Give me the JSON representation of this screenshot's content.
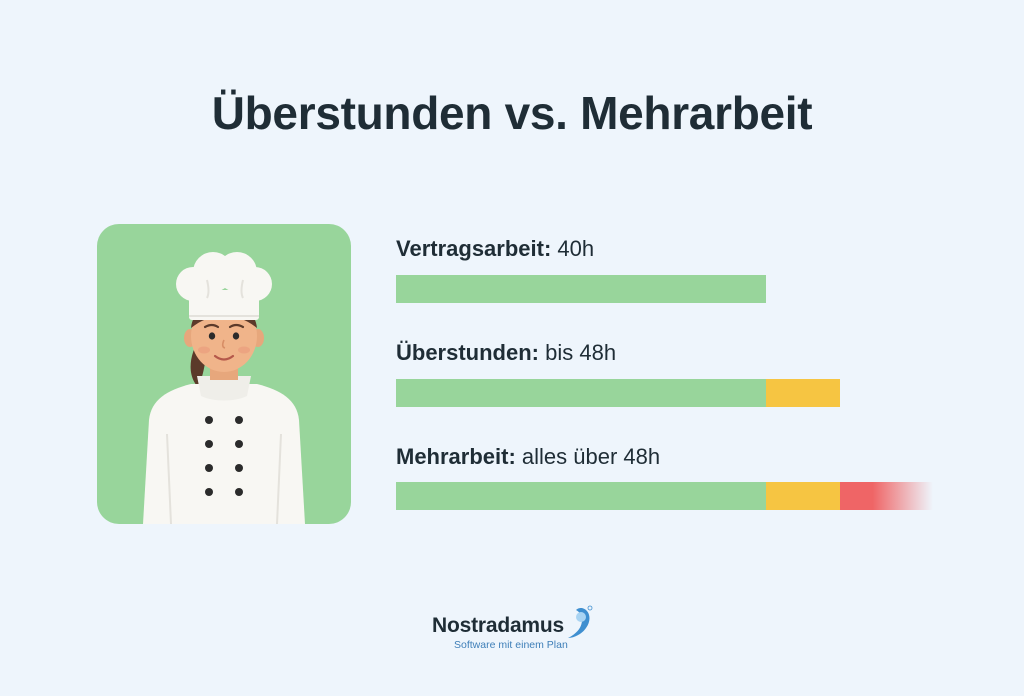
{
  "title": "Überstunden vs. Mehrarbeit",
  "rows": [
    {
      "label_bold": "Vertragsarbeit:",
      "label_rest": " 40h"
    },
    {
      "label_bold": "Überstunden:",
      "label_rest": " bis 48h"
    },
    {
      "label_bold": "Mehrarbeit:",
      "label_rest": " alles über 48h"
    }
  ],
  "brand": {
    "name": "Nostradamus",
    "tagline": "Software mit einem Plan"
  },
  "colors": {
    "green": "#98d59b",
    "yellow": "#f6c542",
    "red": "#ef6566",
    "background": "#eef5fc"
  },
  "chart_data": {
    "type": "bar",
    "orientation": "horizontal",
    "title": "Überstunden vs. Mehrarbeit",
    "categories": [
      "Vertragsarbeit: 40h",
      "Überstunden: bis 48h",
      "Mehrarbeit: alles über 48h"
    ],
    "series": [
      {
        "values": [
          40,
          40,
          40
        ],
        "color": "#98d59b"
      },
      {
        "values": [
          0,
          8,
          8
        ],
        "color": "#f6c542"
      },
      {
        "values": [
          0,
          0,
          10
        ],
        "color": "#ef6566",
        "open_ended": true
      }
    ],
    "xlim": [
      0,
      58
    ],
    "grid": false,
    "legend": "none"
  }
}
